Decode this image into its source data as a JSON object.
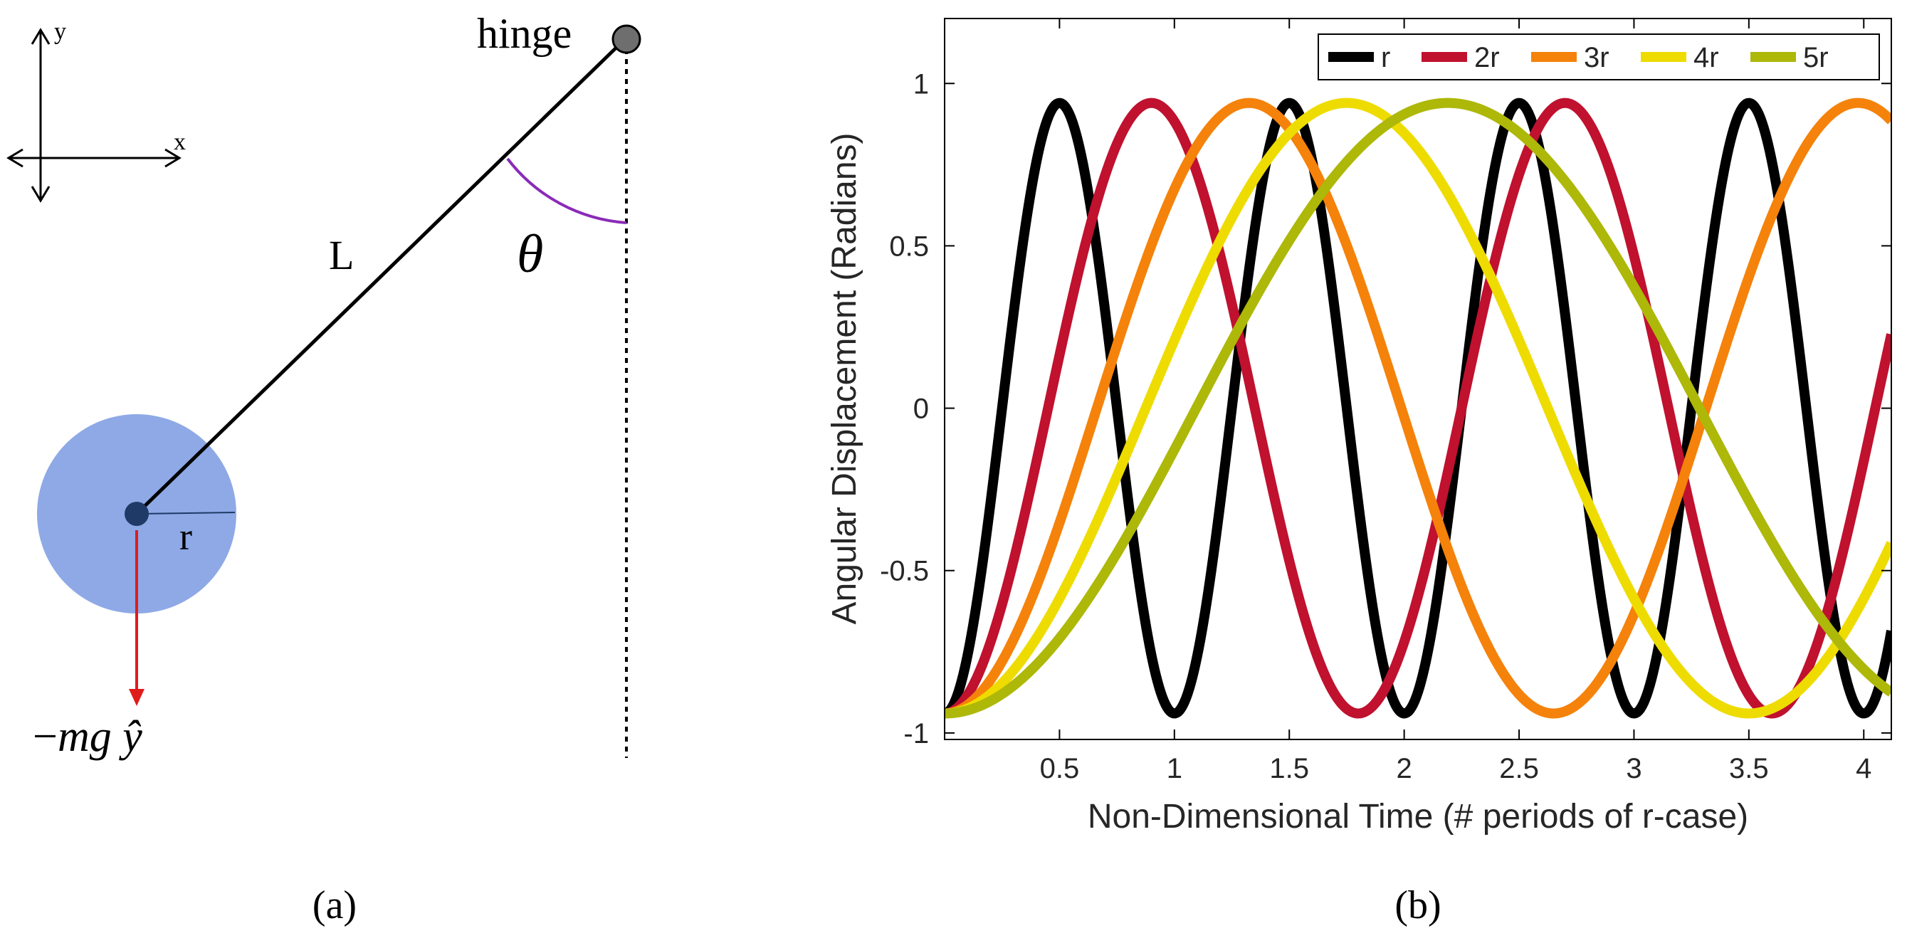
{
  "diagram": {
    "axis_x_label": "x",
    "axis_y_label": "y",
    "hinge_label": "hinge",
    "length_label": "L",
    "angle_label": "θ",
    "radius_label": "r",
    "force_label_prefix": "−",
    "force_label_body": "mg ",
    "force_label_unit": "ŷ",
    "caption": "(a)",
    "colors": {
      "bob": "#8ea9e6",
      "bob_center": "#1f3a66",
      "force": "#e01b1b",
      "angle_arc": "#8a2bb8",
      "hinge": "#6e6e6e"
    }
  },
  "plot": {
    "caption": "(b)"
  },
  "chart_data": {
    "type": "line",
    "title": "",
    "xlabel": "Non-Dimensional Time (# periods of r-case)",
    "ylabel": "Angular Displacement (Radians)",
    "xlim": [
      0,
      4.12
    ],
    "ylim": [
      -1.02,
      1.2
    ],
    "xticks": [
      0.5,
      1,
      1.5,
      2,
      2.5,
      3,
      3.5,
      4
    ],
    "xtick_labels": [
      "0.5",
      "1",
      "1.5",
      "2",
      "2.5",
      "3",
      "3.5",
      "4"
    ],
    "yticks": [
      -1,
      -0.5,
      0,
      0.5,
      1
    ],
    "ytick_labels": [
      "-1",
      "-0.5",
      "0",
      "0.5",
      "1"
    ],
    "grid": false,
    "legend": {
      "position": "top-right",
      "orientation": "horizontal"
    },
    "amplitude": 0.94,
    "series": [
      {
        "name": "r",
        "period": 1.0,
        "color": "#000000"
      },
      {
        "name": "2r",
        "period": 1.8,
        "color": "#c0112f"
      },
      {
        "name": "3r",
        "period": 2.65,
        "color": "#f5820a"
      },
      {
        "name": "4r",
        "period": 3.5,
        "color": "#eedc00"
      },
      {
        "name": "5r",
        "period": 4.38,
        "color": "#adb809"
      }
    ]
  }
}
